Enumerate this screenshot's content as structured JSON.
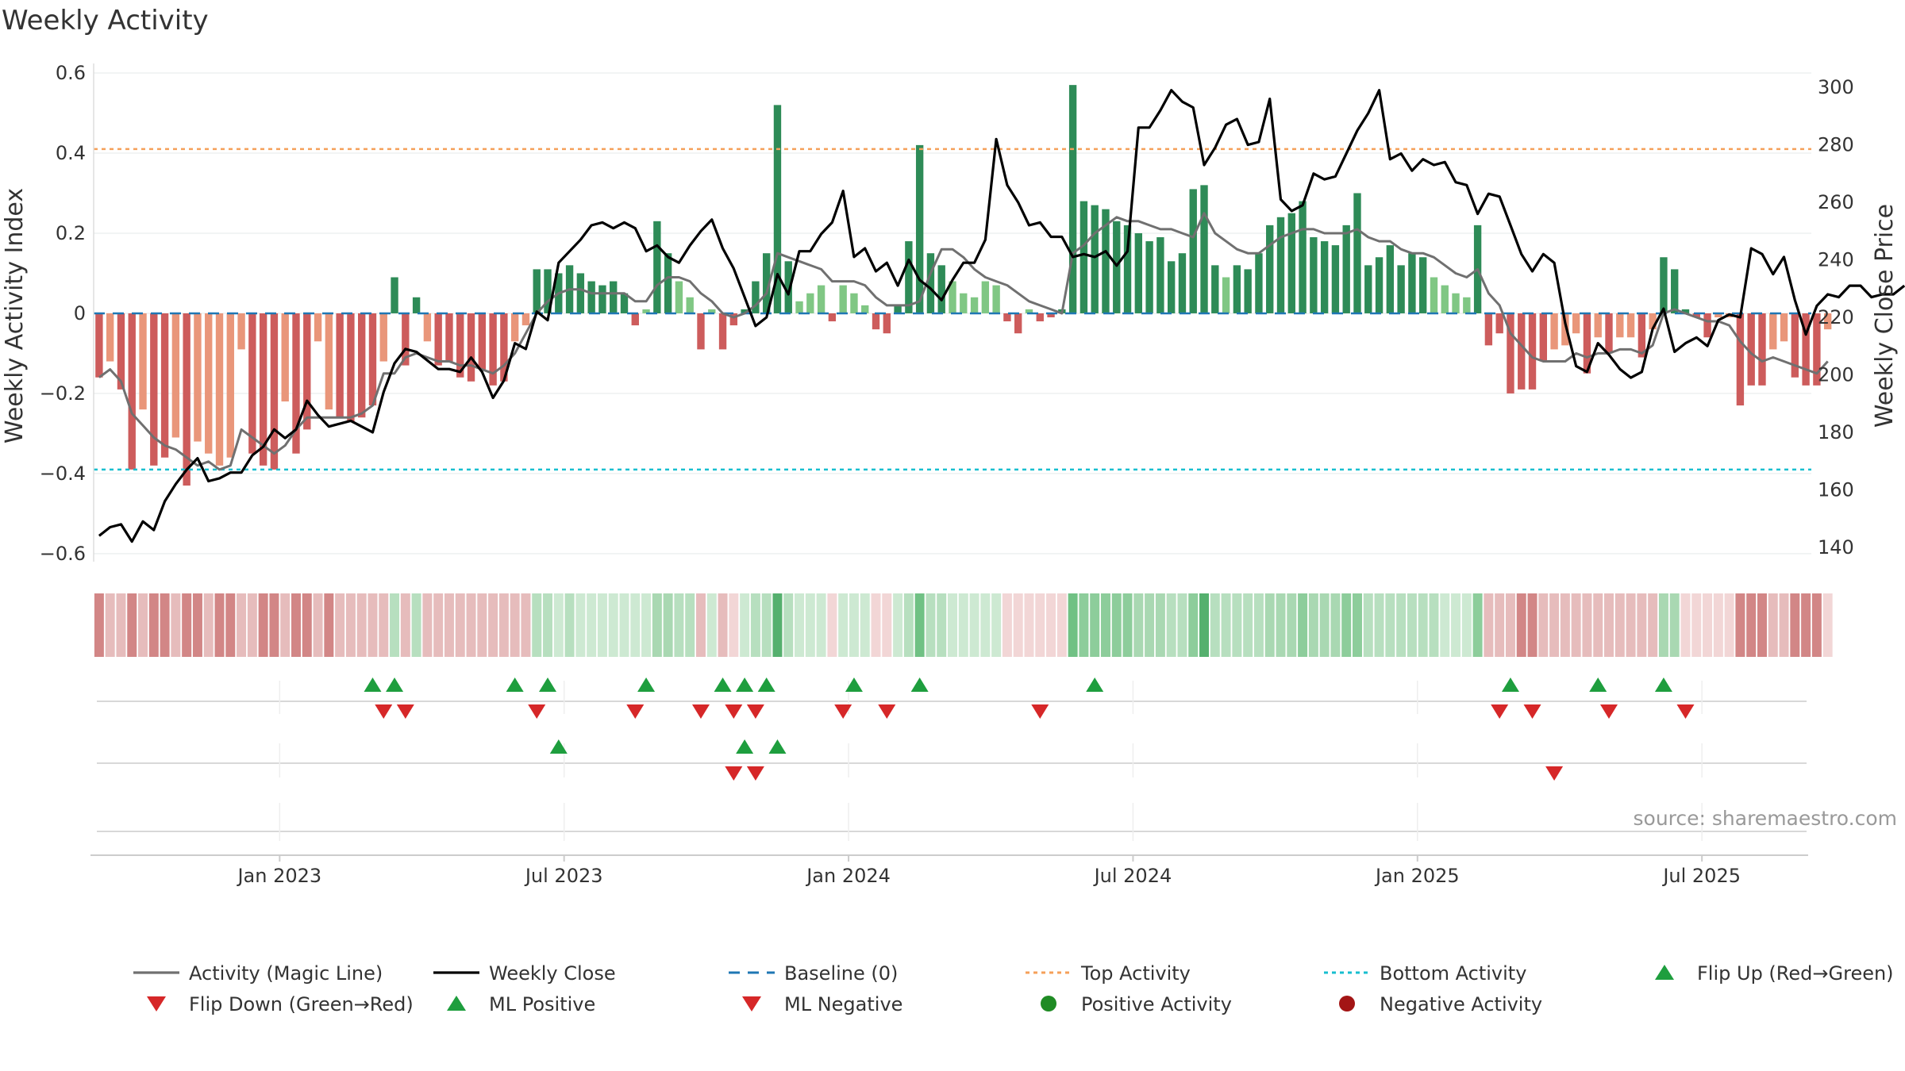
{
  "chart_data": {
    "type": "bar+line",
    "title": "Weekly Activity",
    "ylabel_left": "Weekly Activity Index",
    "ylabel_right": "Weekly Close Price",
    "ylim_left": [
      -0.62,
      0.6
    ],
    "ylim_right": [
      135,
      305
    ],
    "left_ticks": [
      0.6,
      0.4,
      0.2,
      0,
      -0.2,
      -0.4,
      -0.6
    ],
    "left_tick_labels": [
      "0.6",
      "0.4",
      "0.2",
      "0",
      "−0.2",
      "−0.4",
      "−0.6"
    ],
    "right_ticks": [
      300,
      280,
      260,
      240,
      220,
      200,
      180,
      160,
      140
    ],
    "x_start": "2022-09-05",
    "week_count": 157,
    "x_ticks": [
      {
        "label": "Jan 2023",
        "week": 17
      },
      {
        "label": "Jul 2023",
        "week": 43
      },
      {
        "label": "Jan 2024",
        "week": 69
      },
      {
        "label": "Jul 2024",
        "week": 95
      },
      {
        "label": "Jan 2025",
        "week": 121
      },
      {
        "label": "Jul 2025",
        "week": 147
      }
    ],
    "top_activity": 0.41,
    "bottom_activity": -0.39,
    "activity": [
      -0.16,
      -0.12,
      -0.19,
      -0.39,
      -0.24,
      -0.38,
      -0.36,
      -0.31,
      -0.43,
      -0.32,
      -0.35,
      -0.38,
      -0.36,
      -0.09,
      -0.35,
      -0.38,
      -0.39,
      -0.22,
      -0.35,
      -0.29,
      -0.07,
      -0.24,
      -0.26,
      -0.27,
      -0.26,
      -0.23,
      -0.12,
      0.09,
      -0.13,
      0.04,
      -0.07,
      -0.13,
      -0.12,
      -0.16,
      -0.17,
      -0.14,
      -0.18,
      -0.17,
      -0.07,
      -0.03,
      0.11,
      0.11,
      0.1,
      0.12,
      0.1,
      0.08,
      0.07,
      0.08,
      0.05,
      -0.03,
      0.01,
      0.23,
      0.15,
      0.08,
      0.04,
      -0.09,
      0.01,
      -0.09,
      -0.03,
      0.01,
      0.08,
      0.15,
      0.52,
      0.13,
      0.03,
      0.05,
      0.07,
      -0.02,
      0.07,
      0.05,
      0.02,
      -0.04,
      -0.05,
      0.02,
      0.18,
      0.42,
      0.15,
      0.12,
      0.08,
      0.05,
      0.04,
      0.08,
      0.07,
      -0.02,
      -0.05,
      0.01,
      -0.02,
      -0.01,
      0.01,
      0.57,
      0.28,
      0.27,
      0.26,
      0.23,
      0.22,
      0.2,
      0.18,
      0.19,
      0.13,
      0.15,
      0.31,
      0.32,
      0.12,
      0.09,
      0.12,
      0.11,
      0.15,
      0.22,
      0.24,
      0.25,
      0.28,
      0.19,
      0.18,
      0.17,
      0.22,
      0.3,
      0.12,
      0.14,
      0.17,
      0.12,
      0.15,
      0.14,
      0.09,
      0.07,
      0.05,
      0.04,
      0.22,
      -0.08,
      -0.05,
      -0.2,
      -0.19,
      -0.19,
      -0.12,
      -0.09,
      -0.08,
      -0.05,
      -0.15,
      -0.06,
      -0.1,
      -0.06,
      -0.06,
      -0.11,
      -0.04,
      0.14,
      0.11,
      0.01,
      -0.01,
      -0.06,
      -0.01,
      -0.01,
      -0.23,
      -0.18,
      -0.18,
      -0.09,
      -0.07,
      -0.16,
      -0.18,
      -0.18,
      -0.04
    ],
    "magic_line": [
      -0.16,
      -0.14,
      -0.17,
      -0.25,
      -0.28,
      -0.31,
      -0.33,
      -0.34,
      -0.36,
      -0.38,
      -0.37,
      -0.39,
      -0.38,
      -0.29,
      -0.31,
      -0.33,
      -0.35,
      -0.33,
      -0.29,
      -0.26,
      -0.26,
      -0.26,
      -0.26,
      -0.26,
      -0.25,
      -0.23,
      -0.15,
      -0.15,
      -0.11,
      -0.1,
      -0.11,
      -0.12,
      -0.12,
      -0.13,
      -0.13,
      -0.14,
      -0.15,
      -0.13,
      -0.1,
      -0.05,
      0.0,
      0.03,
      0.05,
      0.06,
      0.06,
      0.05,
      0.05,
      0.05,
      0.05,
      0.03,
      0.03,
      0.07,
      0.09,
      0.09,
      0.08,
      0.05,
      0.03,
      0.0,
      -0.01,
      0.0,
      0.02,
      0.05,
      0.15,
      0.14,
      0.13,
      0.12,
      0.11,
      0.08,
      0.08,
      0.08,
      0.07,
      0.04,
      0.02,
      0.02,
      0.02,
      0.03,
      0.1,
      0.16,
      0.16,
      0.14,
      0.11,
      0.09,
      0.08,
      0.07,
      0.05,
      0.03,
      0.02,
      0.01,
      0.0,
      0.15,
      0.17,
      0.2,
      0.22,
      0.24,
      0.23,
      0.23,
      0.22,
      0.21,
      0.21,
      0.2,
      0.19,
      0.25,
      0.2,
      0.18,
      0.16,
      0.15,
      0.15,
      0.17,
      0.19,
      0.2,
      0.21,
      0.21,
      0.2,
      0.2,
      0.2,
      0.21,
      0.19,
      0.18,
      0.18,
      0.16,
      0.15,
      0.15,
      0.14,
      0.12,
      0.1,
      0.09,
      0.11,
      0.05,
      0.02,
      -0.05,
      -0.08,
      -0.11,
      -0.12,
      -0.12,
      -0.12,
      -0.1,
      -0.11,
      -0.1,
      -0.1,
      -0.09,
      -0.09,
      -0.1,
      -0.08,
      0.0,
      0.01,
      0.0,
      -0.01,
      -0.02,
      -0.02,
      -0.03,
      -0.07,
      -0.1,
      -0.12,
      -0.11,
      -0.12,
      -0.13,
      -0.14,
      -0.15,
      -0.12
    ],
    "weekly_close": [
      144,
      147,
      148,
      142,
      149,
      146,
      156,
      162,
      167,
      171,
      163,
      164,
      166,
      166,
      172,
      175,
      181,
      178,
      181,
      191,
      186,
      182,
      183,
      184,
      182,
      180,
      194,
      204,
      209,
      208,
      205,
      202,
      202,
      201,
      206,
      201,
      192,
      198,
      211,
      209,
      222,
      219,
      239,
      243,
      247,
      252,
      253,
      251,
      253,
      251,
      243,
      245,
      241,
      239,
      245,
      250,
      254,
      244,
      237,
      227,
      217,
      220,
      235,
      228,
      243,
      243,
      249,
      253,
      264,
      241,
      244,
      236,
      239,
      231,
      240,
      233,
      230,
      226,
      233,
      239,
      239,
      247,
      282,
      266,
      260,
      252,
      253,
      248,
      248,
      241,
      242,
      241,
      243,
      238,
      243,
      286,
      286,
      292,
      299,
      295,
      293,
      273,
      279,
      287,
      289,
      280,
      281,
      296,
      261,
      257,
      259,
      270,
      268,
      269,
      277,
      285,
      291,
      299,
      275,
      277,
      271,
      275,
      273,
      274,
      267,
      266,
      256,
      263,
      262,
      252,
      242,
      236,
      242,
      239,
      218,
      203,
      201,
      211,
      207,
      202,
      199,
      201,
      216,
      223,
      208,
      211,
      213,
      210,
      219,
      221,
      220,
      244,
      242,
      235,
      241,
      226,
      214,
      224,
      228,
      227,
      231,
      231,
      227,
      228,
      228,
      231
    ],
    "strip_colors": [
      "#d28686",
      "#e6bcbc",
      "#e6bcbc",
      "#d28686",
      "#e6bcbc",
      "#d28686",
      "#d28686",
      "#e6bcbc",
      "#d28686",
      "#d28686",
      "#e6bcbc",
      "#d28686",
      "#d28686",
      "#e6bcbc",
      "#e6bcbc",
      "#d28686",
      "#d28686",
      "#e6bcbc",
      "#d28686",
      "#d28686",
      "#e6bcbc",
      "#d28686",
      "#e6bcbc",
      "#e6bcbc",
      "#e6bcbc",
      "#e6bcbc",
      "#e6bcbc",
      "#b7dfbf",
      "#e6bcbc",
      "#b7dfbf",
      "#e6bcbc",
      "#e6bcbc",
      "#e6bcbc",
      "#e6bcbc",
      "#e6bcbc",
      "#e6bcbc",
      "#e6bcbc",
      "#e6bcbc",
      "#e6bcbc",
      "#e6bcbc",
      "#b7dfbf",
      "#b7dfbf",
      "#cde9d2",
      "#b7dfbf",
      "#cde9d2",
      "#cde9d2",
      "#cde9d2",
      "#cde9d2",
      "#cde9d2",
      "#cde9d2",
      "#cde9d2",
      "#a9d8b2",
      "#a9d8b2",
      "#b7dfbf",
      "#b7dfbf",
      "#e6bcbc",
      "#cde9d2",
      "#e6bcbc",
      "#f2d6d6",
      "#cde9d2",
      "#b7dfbf",
      "#b7dfbf",
      "#55b06e",
      "#b7dfbf",
      "#cde9d2",
      "#cde9d2",
      "#cde9d2",
      "#f2d6d6",
      "#cde9d2",
      "#cde9d2",
      "#cde9d2",
      "#f2d6d6",
      "#f2d6d6",
      "#cde9d2",
      "#b7dfbf",
      "#70c184",
      "#b7dfbf",
      "#b7dfbf",
      "#cde9d2",
      "#cde9d2",
      "#cde9d2",
      "#cde9d2",
      "#cde9d2",
      "#f2d6d6",
      "#f2d6d6",
      "#f2d6d6",
      "#f2d6d6",
      "#f2d6d6",
      "#f2d6d6",
      "#70c184",
      "#8dcd9b",
      "#8dcd9b",
      "#8dcd9b",
      "#8dcd9b",
      "#8dcd9b",
      "#a9d8b2",
      "#a9d8b2",
      "#a9d8b2",
      "#b7dfbf",
      "#b7dfbf",
      "#8dcd9b",
      "#55b06e",
      "#b7dfbf",
      "#b7dfbf",
      "#b7dfbf",
      "#b7dfbf",
      "#b7dfbf",
      "#a9d8b2",
      "#a9d8b2",
      "#a9d8b2",
      "#8dcd9b",
      "#a9d8b2",
      "#a9d8b2",
      "#a9d8b2",
      "#8dcd9b",
      "#8dcd9b",
      "#b7dfbf",
      "#b7dfbf",
      "#b7dfbf",
      "#b7dfbf",
      "#b7dfbf",
      "#b7dfbf",
      "#b7dfbf",
      "#cde9d2",
      "#cde9d2",
      "#cde9d2",
      "#8dcd9b",
      "#e6bcbc",
      "#e6bcbc",
      "#e6bcbc",
      "#d28686",
      "#d28686",
      "#e6bcbc",
      "#e6bcbc",
      "#e6bcbc",
      "#e6bcbc",
      "#e6bcbc",
      "#e6bcbc",
      "#e6bcbc",
      "#e6bcbc",
      "#e6bcbc",
      "#e6bcbc",
      "#e6bcbc",
      "#a9d8b2",
      "#a9d8b2",
      "#f2d6d6",
      "#f2d6d6",
      "#f2d6d6",
      "#f2d6d6",
      "#f2d6d6",
      "#d28686",
      "#d28686",
      "#d28686",
      "#e6bcbc",
      "#e6bcbc",
      "#d28686",
      "#d28686",
      "#d28686",
      "#f2d6d6"
    ],
    "flip_up_weeks": [
      25,
      27,
      38,
      41,
      50,
      57,
      59,
      61,
      69,
      75,
      91,
      129,
      137,
      143
    ],
    "flip_down_weeks": [
      26,
      28,
      40,
      49,
      55,
      58,
      60,
      68,
      72,
      86,
      128,
      131,
      138,
      145
    ],
    "ml_positive_weeks": [
      42,
      59,
      62
    ],
    "ml_negative_weeks": [
      58,
      60,
      133
    ],
    "colors": {
      "pos_strong": "#2e8b57",
      "pos_light": "#80c784",
      "neg_strong": "#cd5c5c",
      "neg_light": "#e9967a",
      "magic_line": "#707070",
      "weekly_close": "#000000",
      "baseline": "#1f77b4",
      "top_activity": "#f5a05a",
      "bottom_activity": "#17becf",
      "flip_up": "#1e9e3e",
      "flip_down": "#d62728",
      "positive_activity": "#1f8b24",
      "negative_activity": "#a31515"
    },
    "legend": [
      {
        "label": "Activity (Magic Line)",
        "kind": "line",
        "color": "#707070"
      },
      {
        "label": "Weekly Close",
        "kind": "line",
        "color": "#000000"
      },
      {
        "label": "Baseline (0)",
        "kind": "dash",
        "color": "#1f77b4"
      },
      {
        "label": "Top Activity",
        "kind": "dot",
        "color": "#f5a05a"
      },
      {
        "label": "Bottom Activity",
        "kind": "dot",
        "color": "#17becf"
      },
      {
        "label": "Flip Up (Red→Green)",
        "kind": "up",
        "color": "#1e9e3e"
      },
      {
        "label": "Flip Down (Green→Red)",
        "kind": "down",
        "color": "#d62728"
      },
      {
        "label": "ML Positive",
        "kind": "up",
        "color": "#1e9e3e"
      },
      {
        "label": "ML Negative",
        "kind": "down",
        "color": "#d62728"
      },
      {
        "label": "Positive Activity",
        "kind": "circle",
        "color": "#1f8b24"
      },
      {
        "label": "Negative Activity",
        "kind": "circle",
        "color": "#a31515"
      }
    ],
    "source": "source: sharemaestro.com"
  }
}
